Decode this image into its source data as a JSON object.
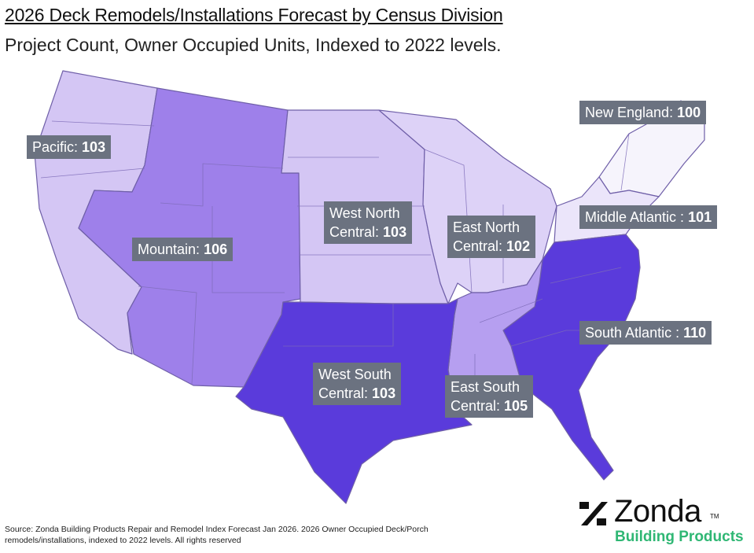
{
  "title": "2026 Deck Remodels/Installations Forecast by Census Division",
  "subtitle": "Project Count, Owner Occupied Units, Indexed to 2022 levels.",
  "divisions": [
    {
      "name": "Pacific",
      "label_line1": "Pacific:",
      "value": "103",
      "color": "#d4c6f4"
    },
    {
      "name": "Mountain",
      "label_line1": "Mountain:",
      "value": "106",
      "color": "#9e80ea"
    },
    {
      "name": "West North Central",
      "label_line1": "West North",
      "label_line2": "Central:",
      "value": "103",
      "color": "#d4c6f4"
    },
    {
      "name": "East North Central",
      "label_line1": "East North",
      "label_line2": "Central:",
      "value": "102",
      "color": "#ddd2f7"
    },
    {
      "name": "New England",
      "label_line1": "New England:",
      "value": "100",
      "color": "#f6f4fc"
    },
    {
      "name": "Middle Atlantic",
      "label_line1": "Middle Atlantic :",
      "value": "101",
      "color": "#ebe5fa"
    },
    {
      "name": "South Atlantic",
      "label_line1": "South Atlantic :",
      "value": "110",
      "color": "#5a3bdb"
    },
    {
      "name": "East South Central",
      "label_line1": "East South",
      "label_line2": "Central:",
      "value": "105",
      "color": "#b69ff0"
    },
    {
      "name": "West South Central",
      "label_line1": "West South",
      "label_line2": "Central:",
      "value": "103",
      "color": "#5a3bdb"
    }
  ],
  "source": "Source: Zonda Building Products Repair and Remodel Index Forecast Jan 2026. 2026 Owner Occupied Deck/Porch remodels/installations, indexed to 2022 levels. All rights reserved",
  "logo": {
    "name": "Zonda",
    "tm": "TM",
    "sub": "Building Products",
    "sub_color": "#2fb774"
  }
}
